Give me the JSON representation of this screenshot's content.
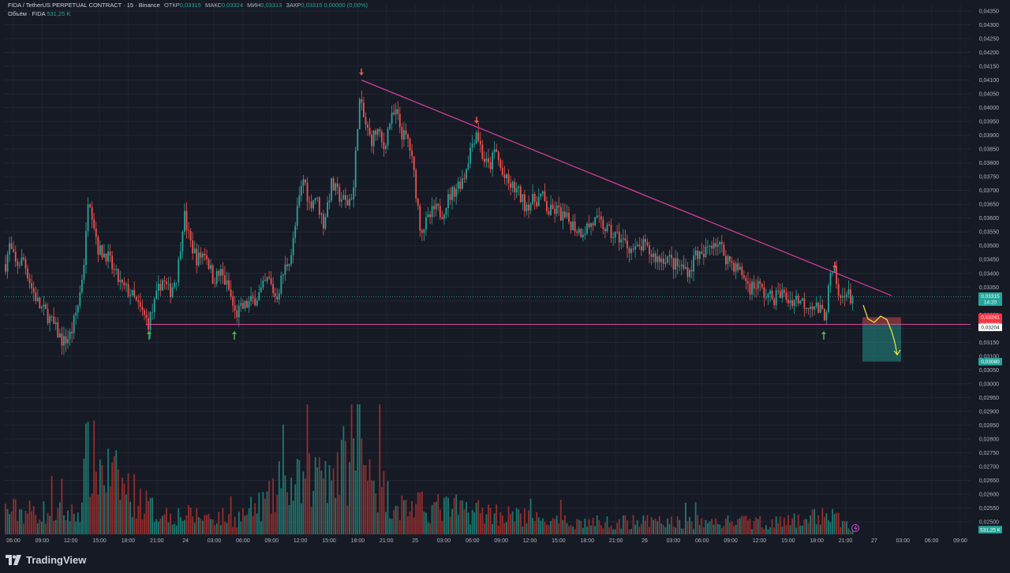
{
  "legend": {
    "symbol": "FIDA / TetherUS PERPETUAL CONTRACT · 15 · Binance",
    "open_label": "ОТКР",
    "open": "0,03315",
    "high_label": "МАКС",
    "high": "0,03324",
    "low_label": "МИН",
    "low": "0,03313",
    "close_label": "ЗАКР",
    "close": "0,03315",
    "change": "0,00000 (0,00%)",
    "volume_label": "Объём · FIDA",
    "volume": "531,25 K"
  },
  "branding": {
    "name": "TradingView"
  },
  "colors": {
    "bg": "#161a25",
    "up": "#26a69a",
    "down": "#ef5350",
    "trendline": "#e040a0",
    "annotation": "#f5e642"
  },
  "chart_data": {
    "type": "candlestick",
    "symbol": "FIDAUSDT.P",
    "timeframe": "15",
    "ylim": [
      0.0302,
      0.0435
    ],
    "y_ticks": [
      "0,04350",
      "0,04300",
      "0,04250",
      "0,04200",
      "0,04150",
      "0,04100",
      "0,04050",
      "0,04000",
      "0,03950",
      "0,03900",
      "0,03850",
      "0,03800",
      "0,03750",
      "0,03700",
      "0,03650",
      "0,03600",
      "0,03550",
      "0,03500",
      "0,03450",
      "0,03400",
      "0,03350",
      "0,03300",
      "0,03250",
      "0,03200",
      "0,03150",
      "0,03100",
      "0,03050",
      "0,03000",
      "0,02950",
      "0,02900",
      "0,02850",
      "0,02800",
      "0,02750",
      "0,02700",
      "0,02650",
      "0,02600",
      "0,02550",
      "0,02500"
    ],
    "x_ticks": [
      "06:00",
      "09:00",
      "12:00",
      "15:00",
      "18:00",
      "21:00",
      "24",
      "03:00",
      "06:00",
      "09:00",
      "12:00",
      "15:00",
      "18:00",
      "21:00",
      "25",
      "03:00",
      "06:00",
      "09:00",
      "12:00",
      "15:00",
      "18:00",
      "21:00",
      "26",
      "03:00",
      "06:00",
      "09:00",
      "12:00",
      "15:00",
      "18:00",
      "21:00",
      "27",
      "03:00",
      "06:00",
      "09:00"
    ],
    "price_path": [
      [
        0,
        0.0347
      ],
      [
        6,
        0.0342
      ],
      [
        12,
        0.035
      ],
      [
        20,
        0.0343
      ],
      [
        30,
        0.0345
      ],
      [
        40,
        0.0335
      ],
      [
        50,
        0.0328
      ],
      [
        60,
        0.0325
      ],
      [
        70,
        0.032
      ],
      [
        80,
        0.0315
      ],
      [
        90,
        0.0318
      ],
      [
        100,
        0.033
      ],
      [
        108,
        0.0348
      ],
      [
        112,
        0.037
      ],
      [
        118,
        0.036
      ],
      [
        125,
        0.0348
      ],
      [
        135,
        0.0347
      ],
      [
        145,
        0.034
      ],
      [
        155,
        0.0335
      ],
      [
        165,
        0.0333
      ],
      [
        175,
        0.0328
      ],
      [
        188,
        0.0322
      ],
      [
        195,
        0.0328
      ],
      [
        205,
        0.0338
      ],
      [
        215,
        0.0333
      ],
      [
        225,
        0.034
      ],
      [
        233,
        0.0362
      ],
      [
        240,
        0.0352
      ],
      [
        250,
        0.0345
      ],
      [
        260,
        0.0348
      ],
      [
        270,
        0.0338
      ],
      [
        280,
        0.034
      ],
      [
        290,
        0.0334
      ],
      [
        298,
        0.0325
      ],
      [
        310,
        0.0328
      ],
      [
        320,
        0.033
      ],
      [
        330,
        0.0333
      ],
      [
        340,
        0.0338
      ],
      [
        350,
        0.0331
      ],
      [
        360,
        0.0341
      ],
      [
        370,
        0.0348
      ],
      [
        378,
        0.0365
      ],
      [
        385,
        0.0375
      ],
      [
        392,
        0.0365
      ],
      [
        400,
        0.0368
      ],
      [
        410,
        0.0358
      ],
      [
        420,
        0.0372
      ],
      [
        430,
        0.0368
      ],
      [
        440,
        0.0365
      ],
      [
        448,
        0.037
      ],
      [
        455,
        0.0403
      ],
      [
        462,
        0.0395
      ],
      [
        470,
        0.0388
      ],
      [
        478,
        0.0392
      ],
      [
        486,
        0.0385
      ],
      [
        494,
        0.0395
      ],
      [
        502,
        0.0398
      ],
      [
        510,
        0.039
      ],
      [
        518,
        0.0388
      ],
      [
        525,
        0.0375
      ],
      [
        533,
        0.0356
      ],
      [
        540,
        0.0358
      ],
      [
        550,
        0.0363
      ],
      [
        560,
        0.0362
      ],
      [
        570,
        0.0368
      ],
      [
        580,
        0.0372
      ],
      [
        588,
        0.0375
      ],
      [
        596,
        0.0385
      ],
      [
        604,
        0.0392
      ],
      [
        612,
        0.0382
      ],
      [
        620,
        0.0378
      ],
      [
        628,
        0.0385
      ],
      [
        636,
        0.0376
      ],
      [
        645,
        0.0372
      ],
      [
        655,
        0.037
      ],
      [
        665,
        0.0365
      ],
      [
        675,
        0.0366
      ],
      [
        687,
        0.0368
      ],
      [
        695,
        0.0362
      ],
      [
        705,
        0.0363
      ],
      [
        715,
        0.036
      ],
      [
        725,
        0.0358
      ],
      [
        735,
        0.0355
      ],
      [
        745,
        0.0357
      ],
      [
        755,
        0.0359
      ],
      [
        765,
        0.0357
      ],
      [
        775,
        0.0354
      ],
      [
        785,
        0.0353
      ],
      [
        795,
        0.035
      ],
      [
        805,
        0.0348
      ],
      [
        815,
        0.035
      ],
      [
        825,
        0.0347
      ],
      [
        835,
        0.0345
      ],
      [
        845,
        0.0346
      ],
      [
        855,
        0.0343
      ],
      [
        865,
        0.0342
      ],
      [
        875,
        0.0341
      ],
      [
        882,
        0.0348
      ],
      [
        890,
        0.0345
      ],
      [
        898,
        0.035
      ],
      [
        905,
        0.0352
      ],
      [
        912,
        0.035
      ],
      [
        920,
        0.0346
      ],
      [
        930,
        0.0343
      ],
      [
        940,
        0.034
      ],
      [
        950,
        0.0335
      ],
      [
        960,
        0.0336
      ],
      [
        970,
        0.0332
      ],
      [
        980,
        0.0331
      ],
      [
        990,
        0.0333
      ],
      [
        1000,
        0.033
      ],
      [
        1010,
        0.0331
      ],
      [
        1020,
        0.0329
      ],
      [
        1030,
        0.0329
      ],
      [
        1040,
        0.0326
      ],
      [
        1046,
        0.0325
      ],
      [
        1052,
        0.0338
      ],
      [
        1058,
        0.034
      ],
      [
        1064,
        0.0329
      ],
      [
        1070,
        0.0334
      ],
      [
        1078,
        0.0331
      ],
      [
        1085,
        0.0332
      ]
    ],
    "volume_path": [
      [
        0,
        0.3
      ],
      [
        100,
        0.25
      ],
      [
        110,
        0.95
      ],
      [
        200,
        0.25
      ],
      [
        300,
        0.2
      ],
      [
        378,
        0.6
      ],
      [
        456,
        0.95
      ],
      [
        500,
        0.35
      ],
      [
        600,
        0.3
      ],
      [
        700,
        0.15
      ],
      [
        800,
        0.15
      ],
      [
        900,
        0.15
      ],
      [
        1000,
        0.15
      ],
      [
        1050,
        0.25
      ],
      [
        1085,
        0.05
      ]
    ],
    "last_price": "0,03315",
    "countdown": "14:20",
    "resistance_trendline": {
      "from": {
        "x": 458,
        "price": 0.041
      },
      "to": {
        "x": 1130,
        "price": 0.03319
      }
    },
    "support_level": 0.03215,
    "short_position": {
      "entry": "0,03215",
      "stop": "0,03241",
      "target": "0,03080",
      "current": "0,03204"
    },
    "volume_badge": "531,25 K",
    "top_arrows_x": [
      458,
      604,
      1058
    ],
    "bottom_arrows_x": [
      189,
      297,
      1044
    ],
    "projection_path": [
      [
        1094,
        0.03285
      ],
      [
        1100,
        0.03235
      ],
      [
        1108,
        0.03222
      ],
      [
        1116,
        0.03245
      ],
      [
        1124,
        0.03232
      ],
      [
        1130,
        0.0319
      ],
      [
        1134,
        0.0315
      ],
      [
        1137,
        0.03105
      ]
    ]
  }
}
